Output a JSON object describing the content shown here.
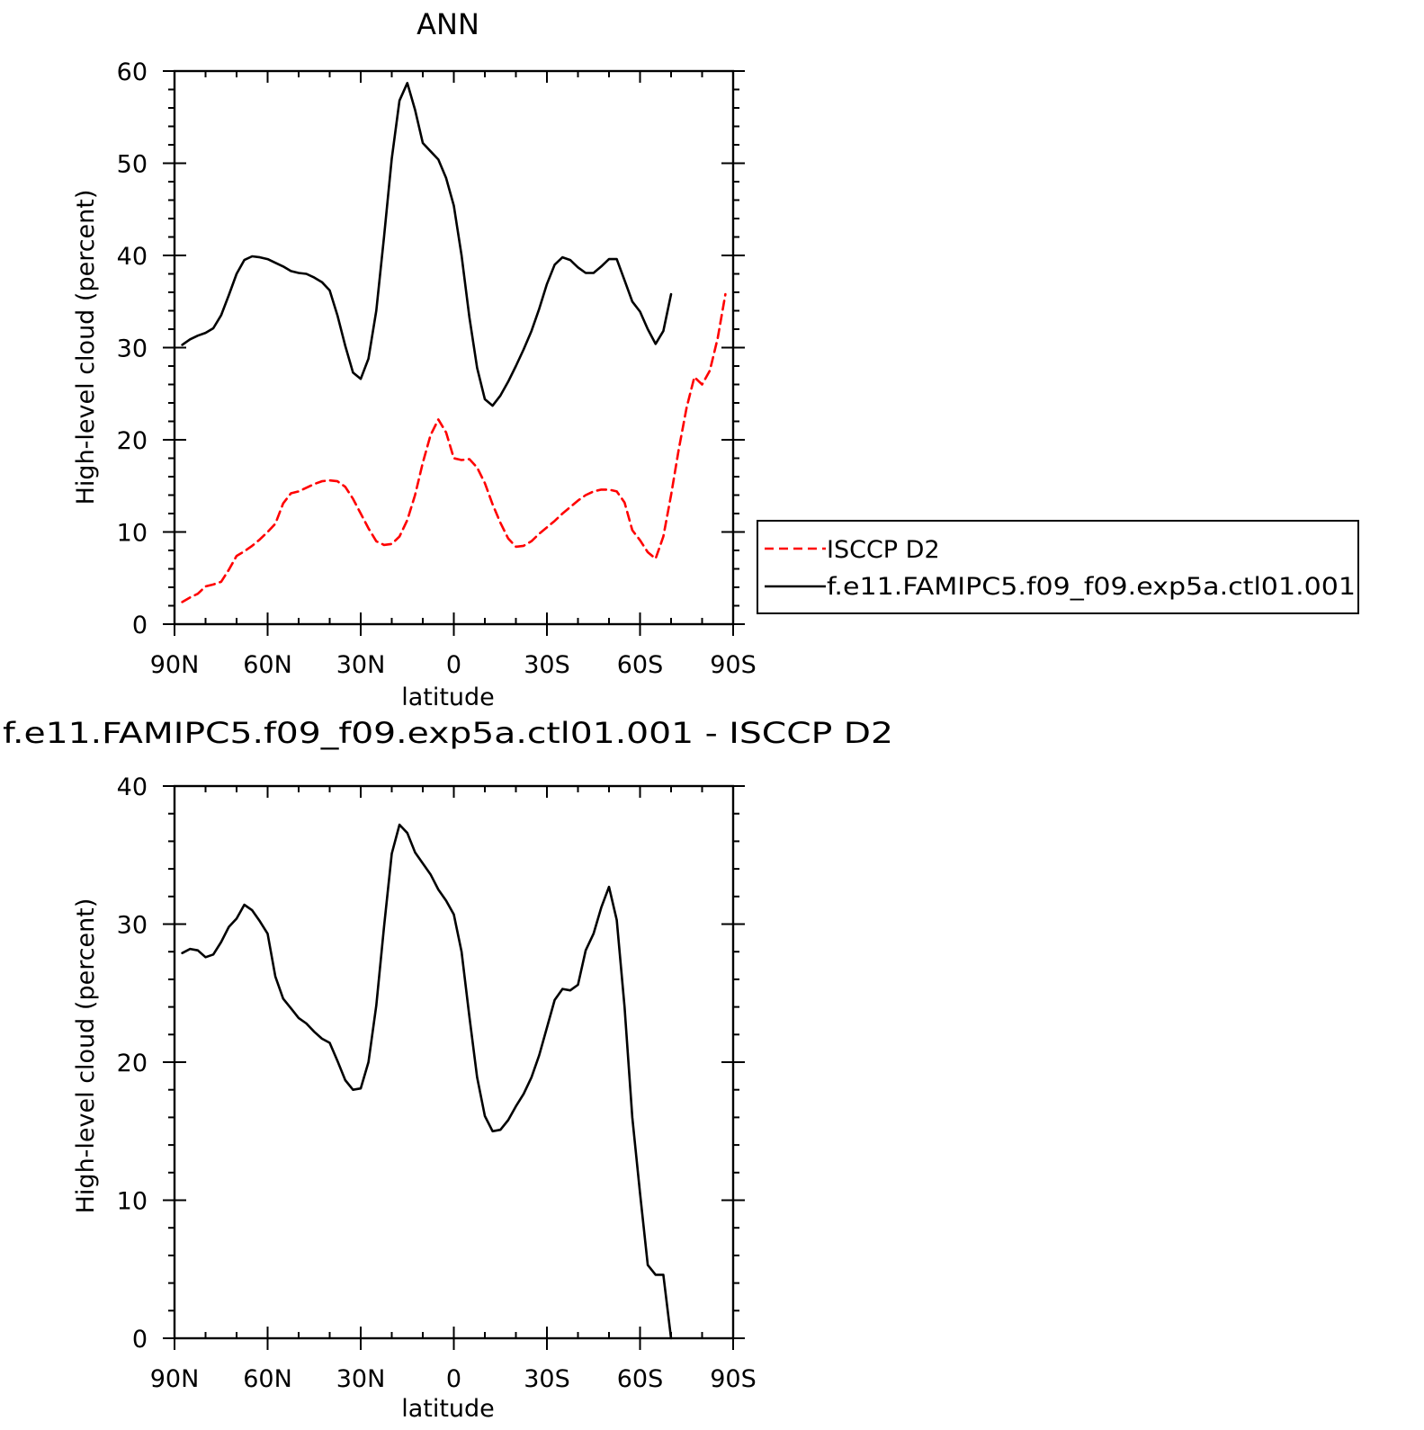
{
  "chart_data": [
    {
      "type": "line",
      "title": "ANN",
      "xlabel": "latitude",
      "ylabel": "High-level cloud (percent)",
      "xlim": [
        -90,
        90
      ],
      "ylim": [
        0,
        60
      ],
      "x_tick_values": [
        -90,
        -60,
        -30,
        0,
        30,
        60,
        90
      ],
      "x_tick_labels": [
        "90N",
        "60N",
        "30N",
        "0",
        "30S",
        "60S",
        "90S"
      ],
      "y_ticks": [
        0,
        10,
        20,
        30,
        40,
        50,
        60
      ],
      "grid": false,
      "legend": {
        "position": "right",
        "entries": [
          "ISCCP D2",
          "f.e11.FAMIPC5.f09_f09.exp5a.ctl01.001"
        ]
      },
      "series": [
        {
          "name": "ISCCP D2",
          "color": "#ff0000",
          "dash": "dashed",
          "points": [
            [
              -87.5,
              2.4
            ],
            [
              -85,
              2.9
            ],
            [
              -82.5,
              3.3
            ],
            [
              -80,
              4.1
            ],
            [
              -77.5,
              4.3
            ],
            [
              -75,
              4.6
            ],
            [
              -72.5,
              5.9
            ],
            [
              -70,
              7.4
            ],
            [
              -67.5,
              7.9
            ],
            [
              -65,
              8.5
            ],
            [
              -62.5,
              9.2
            ],
            [
              -60,
              10.0
            ],
            [
              -57.5,
              10.9
            ],
            [
              -55,
              13.1
            ],
            [
              -52.5,
              14.2
            ],
            [
              -50,
              14.4
            ],
            [
              -47.5,
              14.8
            ],
            [
              -45,
              15.2
            ],
            [
              -42.5,
              15.5
            ],
            [
              -40,
              15.6
            ],
            [
              -37.5,
              15.5
            ],
            [
              -35,
              14.9
            ],
            [
              -32.5,
              13.6
            ],
            [
              -30,
              12.0
            ],
            [
              -27.5,
              10.4
            ],
            [
              -25,
              9.0
            ],
            [
              -22.5,
              8.6
            ],
            [
              -20,
              8.7
            ],
            [
              -17.5,
              9.5
            ],
            [
              -15,
              11.3
            ],
            [
              -12.5,
              14.0
            ],
            [
              -10,
              17.5
            ],
            [
              -7.5,
              20.5
            ],
            [
              -5,
              22.2
            ],
            [
              -2.5,
              20.8
            ],
            [
              0,
              18.0
            ],
            [
              2.5,
              17.8
            ],
            [
              5,
              17.9
            ],
            [
              7.5,
              17.0
            ],
            [
              10,
              15.3
            ],
            [
              12.5,
              13.0
            ],
            [
              15,
              11.0
            ],
            [
              17.5,
              9.3
            ],
            [
              20,
              8.4
            ],
            [
              22.5,
              8.5
            ],
            [
              25,
              9.0
            ],
            [
              27.5,
              9.8
            ],
            [
              30,
              10.5
            ],
            [
              32.5,
              11.2
            ],
            [
              35,
              12.0
            ],
            [
              37.5,
              12.7
            ],
            [
              40,
              13.4
            ],
            [
              42.5,
              14.0
            ],
            [
              45,
              14.4
            ],
            [
              47.5,
              14.6
            ],
            [
              50,
              14.6
            ],
            [
              52.5,
              14.4
            ],
            [
              55,
              13.2
            ],
            [
              57.5,
              10.2
            ],
            [
              60,
              9.1
            ],
            [
              62.5,
              7.8
            ],
            [
              65,
              7.1
            ],
            [
              67.5,
              9.5
            ],
            [
              70,
              14.0
            ],
            [
              72.5,
              19.0
            ],
            [
              75,
              23.5
            ],
            [
              77.5,
              26.8
            ],
            [
              80,
              26.0
            ],
            [
              82.5,
              27.5
            ],
            [
              85,
              31.0
            ],
            [
              87.5,
              35.8
            ]
          ]
        },
        {
          "name": "f.e11.FAMIPC5.f09_f09.exp5a.ctl01.001",
          "color": "#000000",
          "dash": "solid",
          "points": [
            [
              -87.5,
              30.3
            ],
            [
              -85,
              30.9
            ],
            [
              -82.5,
              31.3
            ],
            [
              -80,
              31.6
            ],
            [
              -77.5,
              32.1
            ],
            [
              -75,
              33.5
            ],
            [
              -72.5,
              35.7
            ],
            [
              -70,
              38.0
            ],
            [
              -67.5,
              39.5
            ],
            [
              -65,
              39.9
            ],
            [
              -62.5,
              39.8
            ],
            [
              -60,
              39.6
            ],
            [
              -57.5,
              39.2
            ],
            [
              -55,
              38.8
            ],
            [
              -52.5,
              38.3
            ],
            [
              -50,
              38.1
            ],
            [
              -47.5,
              38.0
            ],
            [
              -45,
              37.6
            ],
            [
              -42.5,
              37.1
            ],
            [
              -40,
              36.2
            ],
            [
              -37.5,
              33.5
            ],
            [
              -35,
              30.2
            ],
            [
              -32.5,
              27.3
            ],
            [
              -30,
              26.6
            ],
            [
              -27.5,
              28.8
            ],
            [
              -25,
              34.0
            ],
            [
              -22.5,
              42.0
            ],
            [
              -20,
              50.5
            ],
            [
              -17.5,
              56.8
            ],
            [
              -15,
              58.7
            ],
            [
              -12.5,
              55.8
            ],
            [
              -10,
              52.2
            ],
            [
              -7.5,
              51.3
            ],
            [
              -5,
              50.4
            ],
            [
              -2.5,
              48.4
            ],
            [
              0,
              45.4
            ],
            [
              2.5,
              40.0
            ],
            [
              5,
              33.3
            ],
            [
              7.5,
              27.8
            ],
            [
              10,
              24.4
            ],
            [
              12.5,
              23.7
            ],
            [
              15,
              24.8
            ],
            [
              17.5,
              26.3
            ],
            [
              20,
              28.0
            ],
            [
              22.5,
              29.8
            ],
            [
              25,
              31.8
            ],
            [
              27.5,
              34.2
            ],
            [
              30,
              36.9
            ],
            [
              32.5,
              39.0
            ],
            [
              35,
              39.8
            ],
            [
              37.5,
              39.5
            ],
            [
              40,
              38.7
            ],
            [
              42.5,
              38.1
            ],
            [
              45,
              38.1
            ],
            [
              47.5,
              38.8
            ],
            [
              50,
              39.6
            ],
            [
              52.5,
              39.6
            ],
            [
              55,
              37.3
            ],
            [
              57.5,
              35.0
            ],
            [
              60,
              33.9
            ],
            [
              62.5,
              32.0
            ],
            [
              65,
              30.4
            ],
            [
              67.5,
              31.8
            ],
            [
              70,
              35.8
            ]
          ]
        }
      ]
    },
    {
      "type": "line",
      "title": "f.e11.FAMIPC5.f09_f09.exp5a.ctl01.001 - ISCCP D2",
      "xlabel": "latitude",
      "ylabel": "High-level cloud (percent)",
      "xlim": [
        -90,
        90
      ],
      "ylim": [
        0,
        40
      ],
      "x_tick_values": [
        -90,
        -60,
        -30,
        0,
        30,
        60,
        90
      ],
      "x_tick_labels": [
        "90N",
        "60N",
        "30N",
        "0",
        "30S",
        "60S",
        "90S"
      ],
      "y_ticks": [
        0,
        10,
        20,
        30,
        40
      ],
      "grid": false,
      "series": [
        {
          "color": "#000000",
          "dash": "solid",
          "points": [
            [
              -87.5,
              27.9
            ],
            [
              -85,
              28.2
            ],
            [
              -82.5,
              28.1
            ],
            [
              -80,
              27.6
            ],
            [
              -77.5,
              27.8
            ],
            [
              -75,
              28.7
            ],
            [
              -72.5,
              29.8
            ],
            [
              -70,
              30.4
            ],
            [
              -67.5,
              31.4
            ],
            [
              -65,
              31.0
            ],
            [
              -62.5,
              30.2
            ],
            [
              -60,
              29.3
            ],
            [
              -57.5,
              26.2
            ],
            [
              -55,
              24.6
            ],
            [
              -52.5,
              23.9
            ],
            [
              -50,
              23.2
            ],
            [
              -47.5,
              22.8
            ],
            [
              -45,
              22.2
            ],
            [
              -42.5,
              21.7
            ],
            [
              -40,
              21.4
            ],
            [
              -37.5,
              20.1
            ],
            [
              -35,
              18.7
            ],
            [
              -32.5,
              18.0
            ],
            [
              -30,
              18.1
            ],
            [
              -27.5,
              20.0
            ],
            [
              -25,
              24.1
            ],
            [
              -22.5,
              29.8
            ],
            [
              -20,
              35.1
            ],
            [
              -17.5,
              37.2
            ],
            [
              -15,
              36.6
            ],
            [
              -12.5,
              35.2
            ],
            [
              -10,
              34.4
            ],
            [
              -7.5,
              33.6
            ],
            [
              -5,
              32.5
            ],
            [
              -2.5,
              31.7
            ],
            [
              0,
              30.7
            ],
            [
              2.5,
              28.0
            ],
            [
              5,
              23.3
            ],
            [
              7.5,
              18.9
            ],
            [
              10,
              16.1
            ],
            [
              12.5,
              15.0
            ],
            [
              15,
              15.1
            ],
            [
              17.5,
              15.8
            ],
            [
              20,
              16.8
            ],
            [
              22.5,
              17.7
            ],
            [
              25,
              18.9
            ],
            [
              27.5,
              20.5
            ],
            [
              30,
              22.5
            ],
            [
              32.5,
              24.5
            ],
            [
              35,
              25.3
            ],
            [
              37.5,
              25.2
            ],
            [
              40,
              25.6
            ],
            [
              42.5,
              28.1
            ],
            [
              45,
              29.3
            ],
            [
              47.5,
              31.2
            ],
            [
              50,
              32.7
            ],
            [
              52.5,
              30.3
            ],
            [
              55,
              24.0
            ],
            [
              57.5,
              16.0
            ],
            [
              60,
              10.5
            ],
            [
              62.5,
              5.3
            ],
            [
              65,
              4.6
            ],
            [
              67.5,
              4.6
            ],
            [
              70,
              0.0
            ]
          ]
        }
      ]
    }
  ]
}
